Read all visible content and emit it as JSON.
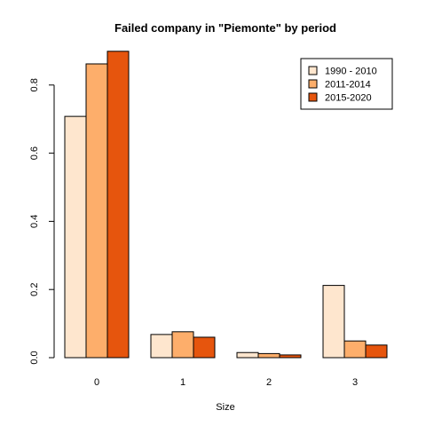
{
  "chart_data": {
    "type": "bar",
    "title": "Failed company in \"Piemonte\" by period",
    "xlabel": "Size",
    "ylabel": "",
    "categories": [
      "0",
      "1",
      "2",
      "3"
    ],
    "series": [
      {
        "name": "1990 - 2010",
        "values": [
          0.708,
          0.068,
          0.015,
          0.212
        ],
        "color": "#FEE6CE"
      },
      {
        "name": "2011-2014",
        "values": [
          0.862,
          0.076,
          0.012,
          0.049
        ],
        "color": "#FDAE6B"
      },
      {
        "name": "2015-2020",
        "values": [
          0.899,
          0.06,
          0.008,
          0.037
        ],
        "color": "#E6550D"
      }
    ],
    "ylim": [
      0,
      0.9
    ],
    "yticks": [
      "0.0",
      "0.2",
      "0.4",
      "0.6",
      "0.8"
    ],
    "legend": "top-right",
    "grid": false
  }
}
